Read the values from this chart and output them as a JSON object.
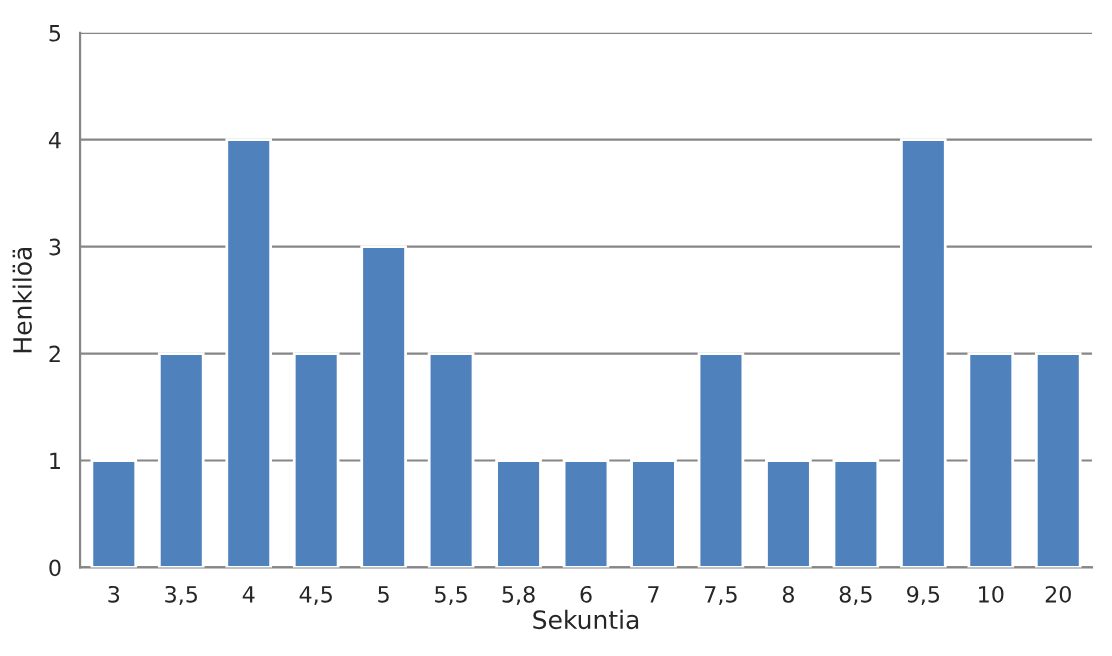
{
  "chart_data": {
    "type": "bar",
    "xlabel": "Sekuntia",
    "ylabel": "Henkilöä",
    "categories": [
      "3",
      "3,5",
      "4",
      "4,5",
      "5",
      "5,5",
      "5,8",
      "6",
      "7",
      "7,5",
      "8",
      "8,5",
      "9,5",
      "10",
      "20"
    ],
    "values": [
      1,
      2,
      4,
      2,
      3,
      2,
      1,
      1,
      1,
      2,
      1,
      1,
      4,
      2,
      2
    ],
    "color": "#4f81bd",
    "ylim": [
      0,
      5
    ],
    "yticks": [
      0,
      1,
      2,
      3,
      4,
      5
    ],
    "grid": "y",
    "legend": false
  }
}
